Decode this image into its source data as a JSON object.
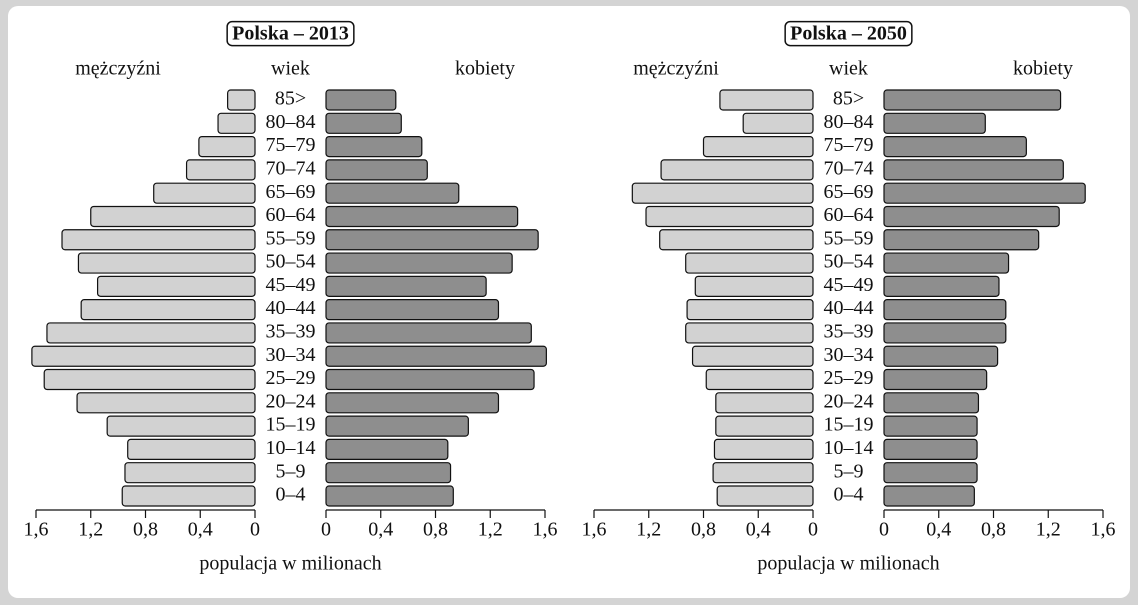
{
  "chart_data": [
    {
      "type": "pyramid",
      "title": "Polska – 2013",
      "category_label": "wiek",
      "xlabel": "populacja w milionach",
      "categories": [
        "0–4",
        "5–9",
        "10–14",
        "15–19",
        "20–24",
        "25–29",
        "30–34",
        "35–39",
        "40–44",
        "45–49",
        "50–54",
        "55–59",
        "60–64",
        "65–69",
        "70–74",
        "75–79",
        "80–84",
        "85>"
      ],
      "series": [
        {
          "name": "mężczyźni",
          "color": "#d2d2d2",
          "values": [
            0.97,
            0.95,
            0.93,
            1.08,
            1.3,
            1.54,
            1.63,
            1.52,
            1.27,
            1.15,
            1.29,
            1.41,
            1.2,
            0.74,
            0.5,
            0.41,
            0.27,
            0.2
          ]
        },
        {
          "name": "kobiety",
          "color": "#8e8e8e",
          "values": [
            0.93,
            0.91,
            0.89,
            1.04,
            1.26,
            1.52,
            1.61,
            1.5,
            1.26,
            1.17,
            1.36,
            1.55,
            1.4,
            0.97,
            0.74,
            0.7,
            0.55,
            0.51
          ]
        }
      ],
      "xlim": [
        0,
        1.6
      ],
      "xticks": [
        0,
        {
          "value": 0.4,
          "label": "0,4"
        },
        {
          "value": 0.8,
          "label": "0,8"
        },
        {
          "value": 1.2,
          "label": "1,2"
        },
        {
          "value": 1.6,
          "label": "1,6"
        }
      ]
    },
    {
      "type": "pyramid",
      "title": "Polska – 2050",
      "category_label": "wiek",
      "xlabel": "populacja w milionach",
      "categories": [
        "0–4",
        "5–9",
        "10–14",
        "15–19",
        "20–24",
        "25–29",
        "30–34",
        "35–39",
        "40–44",
        "45–49",
        "50–54",
        "55–59",
        "60–64",
        "65–69",
        "70–74",
        "75–79",
        "80–84",
        "85>"
      ],
      "series": [
        {
          "name": "mężczyźni",
          "color": "#d2d2d2",
          "values": [
            0.7,
            0.73,
            0.72,
            0.71,
            0.71,
            0.78,
            0.88,
            0.93,
            0.92,
            0.86,
            0.93,
            1.12,
            1.22,
            1.32,
            1.11,
            0.8,
            0.51,
            0.68
          ]
        },
        {
          "name": "kobiety",
          "color": "#8e8e8e",
          "values": [
            0.66,
            0.68,
            0.68,
            0.68,
            0.69,
            0.75,
            0.83,
            0.89,
            0.89,
            0.84,
            0.91,
            1.13,
            1.28,
            1.47,
            1.31,
            1.04,
            0.74,
            1.29
          ]
        }
      ],
      "xlim": [
        0,
        1.6
      ],
      "xticks": [
        0,
        {
          "value": 0.4,
          "label": "0,4"
        },
        {
          "value": 0.8,
          "label": "0,8"
        },
        {
          "value": 1.2,
          "label": "1,2"
        },
        {
          "value": 1.6,
          "label": "1,6"
        }
      ]
    }
  ]
}
